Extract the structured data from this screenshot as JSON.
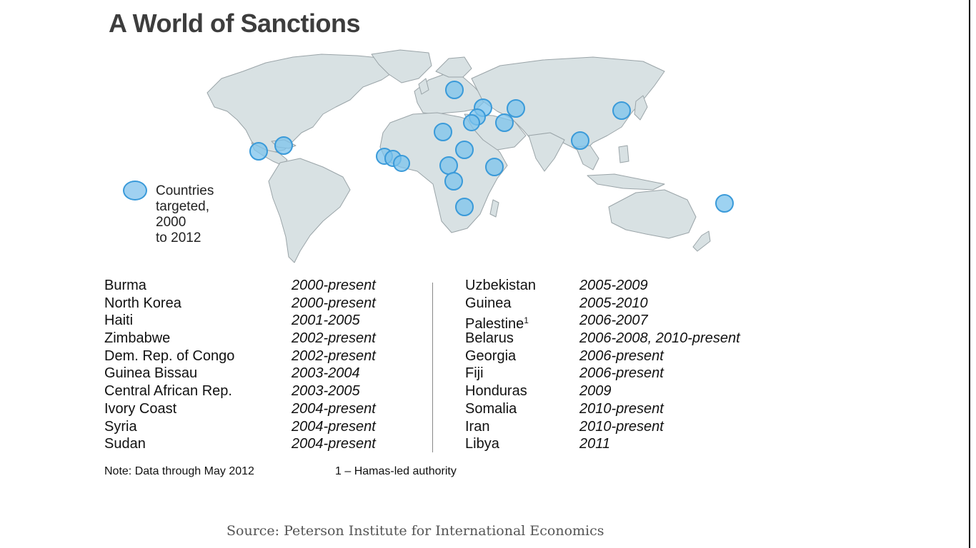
{
  "title": "A World of Sanctions",
  "colors": {
    "land": "#d8e1e3",
    "land_border": "#9aa4a8",
    "marker_fill": "#7cc3ec",
    "marker_stroke": "#3a9ad9"
  },
  "legend": {
    "label_lines": [
      "Countries",
      "targeted,",
      "2000",
      "to 2012"
    ]
  },
  "left_rows": [
    {
      "country": "Burma",
      "years": "2000-present"
    },
    {
      "country": "North Korea",
      "years": "2000-present"
    },
    {
      "country": "Haiti",
      "years": "2001-2005"
    },
    {
      "country": "Zimbabwe",
      "years": "2002-present"
    },
    {
      "country": "Dem. Rep. of Congo",
      "years": "2002-present"
    },
    {
      "country": "Guinea Bissau",
      "years": "2003-2004"
    },
    {
      "country": "Central African Rep.",
      "years": "2003-2005"
    },
    {
      "country": "Ivory Coast",
      "years": "2004-present"
    },
    {
      "country": "Syria",
      "years": "2004-present"
    },
    {
      "country": "Sudan",
      "years": "2004-present"
    }
  ],
  "right_rows": [
    {
      "country": "Uzbekistan",
      "years": "2005-2009"
    },
    {
      "country": "Guinea",
      "years": "2005-2010"
    },
    {
      "country": "Palestine",
      "sup": "1",
      "years": "2006-2007"
    },
    {
      "country": "Belarus",
      "years": "2006-2008, 2010-present"
    },
    {
      "country": "Georgia",
      "years": "2006-present"
    },
    {
      "country": "Fiji",
      "years": "2006-present"
    },
    {
      "country": "Honduras",
      "years": "2009"
    },
    {
      "country": "Somalia",
      "years": "2010-present"
    },
    {
      "country": "Iran",
      "years": "2010-present"
    },
    {
      "country": "Libya",
      "years": "2011"
    }
  ],
  "note": "Note: Data through May 2012",
  "footnote": "1 – Hamas-led authority",
  "source": "Source: Peterson Institute for International Economics"
}
